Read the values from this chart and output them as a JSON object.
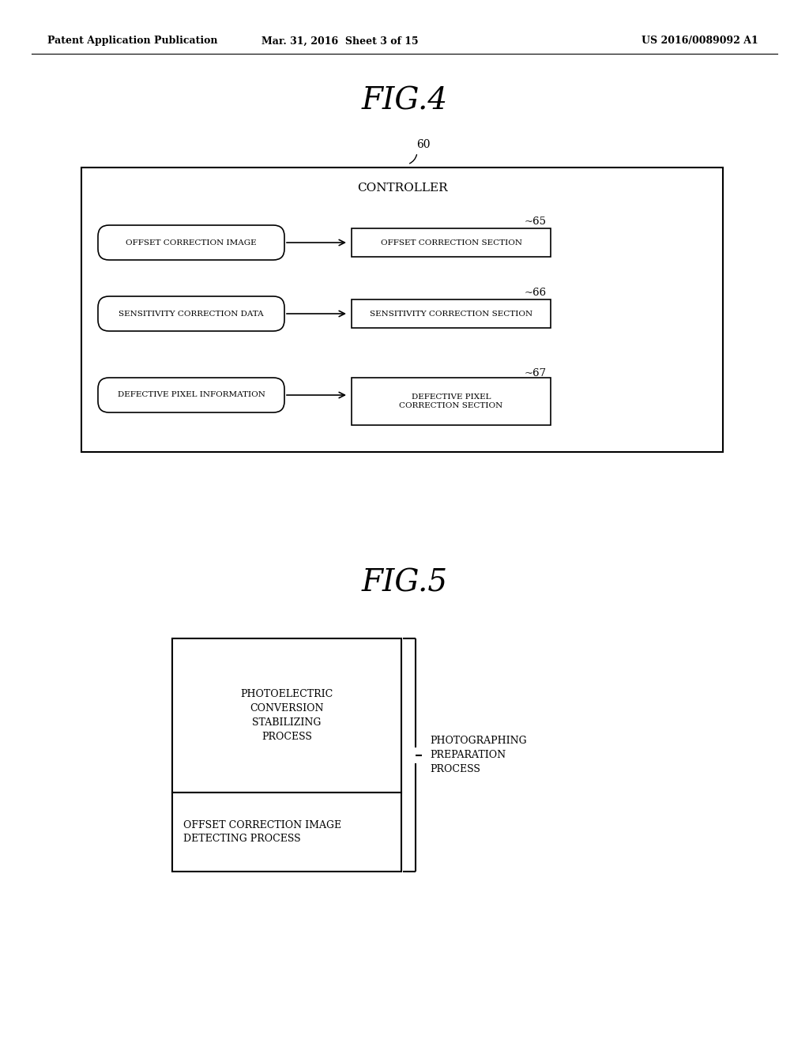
{
  "bg_color": "#ffffff",
  "header_left": "Patent Application Publication",
  "header_center": "Mar. 31, 2016  Sheet 3 of 15",
  "header_right": "US 2016/0089092 A1",
  "fig4_title": "FIG.4",
  "fig5_title": "FIG.5",
  "fig4": {
    "controller_label": "CONTROLLER",
    "ref_60": "60",
    "rows": [
      {
        "left_label": "OFFSET CORRECTION IMAGE",
        "right_label": "OFFSET CORRECTION SECTION",
        "ref": "65"
      },
      {
        "left_label": "SENSITIVITY CORRECTION DATA",
        "right_label": "SENSITIVITY CORRECTION SECTION",
        "ref": "66"
      },
      {
        "left_label": "DEFECTIVE PIXEL INFORMATION",
        "right_label": "DEFECTIVE PIXEL\nCORRECTION SECTION",
        "ref": "67"
      }
    ]
  },
  "fig5": {
    "box1_label": "PHOTOELECTRIC\nCONVERSION\nSTABILIZING\nPROCESS",
    "box2_label": "OFFSET CORRECTION IMAGE\nDETECTING PROCESS",
    "brace_label": "PHOTOGRAPHING\nPREPARATION\nPROCESS"
  }
}
